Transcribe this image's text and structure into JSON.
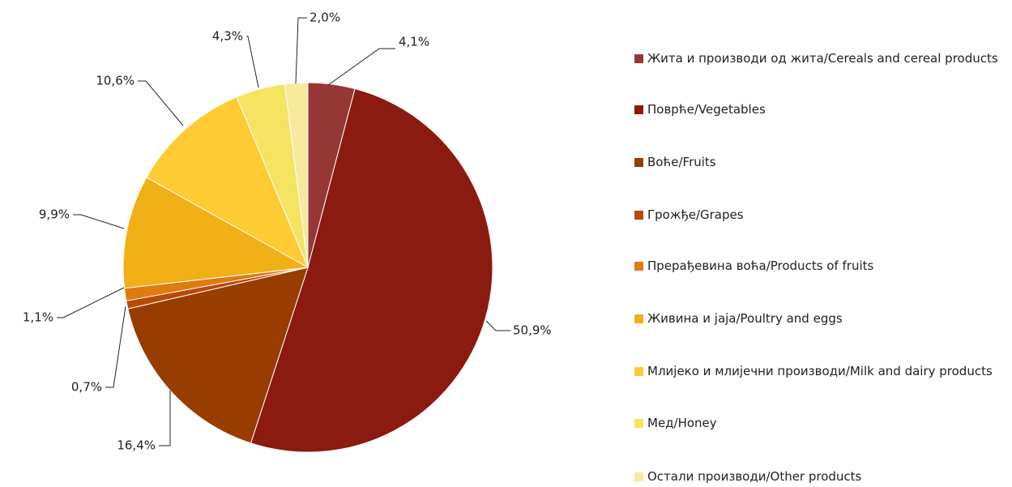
{
  "chart_data": {
    "type": "pie",
    "categories": [
      "Жита и производи од жита/Cereals and cereal products",
      "Поврће/Vegetables",
      "Воће/Fruits",
      "Грожђе/Grapes",
      "Прерађевина воћа/Products of fruits",
      "Живина и јаја/Poultry and eggs",
      "Млијеко и млијечни производи/Milk and dairy products",
      "Мед/Honey",
      "Остали производи/Other products"
    ],
    "values": [
      4.1,
      50.9,
      16.4,
      0.7,
      1.1,
      9.9,
      10.6,
      4.3,
      2.0
    ],
    "value_labels": [
      "4,1%",
      "50,9%",
      "16,4%",
      "0,7%",
      "1,1%",
      "9,9%",
      "10,6%",
      "4,3%",
      "2,0%"
    ],
    "colors": [
      "#953735",
      "#8b1a10",
      "#993c00",
      "#b84a06",
      "#e07b10",
      "#f0b016",
      "#ffcb33",
      "#f5e462",
      "#f7ea9c"
    ],
    "legend": "right"
  }
}
